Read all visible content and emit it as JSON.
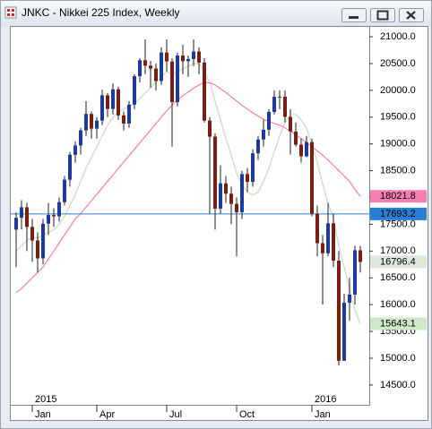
{
  "chart_data": {
    "type": "candlestick",
    "title": "JNKC - Nikkei 225 Index, Weekly",
    "categories": [
      null,
      null,
      null,
      "Jan",
      null,
      null,
      null,
      null,
      null,
      null,
      null,
      null,
      null,
      null,
      null,
      "Apr",
      null,
      null,
      null,
      null,
      null,
      null,
      null,
      null,
      null,
      null,
      null,
      null,
      "Jul",
      null,
      null,
      null,
      null,
      null,
      null,
      null,
      null,
      null,
      null,
      null,
      null,
      "Oct",
      null,
      null,
      null,
      null,
      null,
      null,
      null,
      null,
      null,
      null,
      null,
      null,
      null,
      "Jan",
      null,
      null,
      null,
      null,
      null,
      null,
      null,
      null,
      null
    ],
    "category_years": [
      null,
      null,
      null,
      "2015",
      null,
      null,
      null,
      null,
      null,
      null,
      null,
      null,
      null,
      null,
      null,
      null,
      null,
      null,
      null,
      null,
      null,
      null,
      null,
      null,
      null,
      null,
      null,
      null,
      null,
      null,
      null,
      null,
      null,
      null,
      null,
      null,
      null,
      null,
      null,
      null,
      null,
      null,
      null,
      null,
      null,
      null,
      null,
      null,
      null,
      null,
      null,
      null,
      null,
      null,
      null,
      "2016",
      null,
      null,
      null,
      null,
      null,
      null,
      null,
      null,
      null
    ],
    "open": [
      17400,
      17621,
      17818,
      17451,
      17197,
      16864,
      17511,
      17674,
      17648,
      17913,
      18332,
      18798,
      18971,
      19254,
      19560,
      19286,
      19435,
      19908,
      19653,
      20020,
      19532,
      19380,
      19733,
      20264,
      20563,
      20461,
      20407,
      20174,
      20706,
      20539,
      19780,
      20650,
      20544,
      20585,
      20725,
      20519,
      19436,
      19136,
      17792,
      18264,
      18070,
      17880,
      17725,
      18438,
      18291,
      18825,
      19083,
      19265,
      19597,
      19880,
      19883,
      19504,
      19230,
      18986,
      18769,
      19034,
      17698,
      17147,
      16958,
      17518,
      16820,
      14953,
      16036,
      16188,
      17015
    ],
    "high": [
      17720,
      17950,
      17900,
      17600,
      17350,
      17600,
      17900,
      17800,
      18000,
      18400,
      18850,
      19050,
      19300,
      19800,
      19600,
      19500,
      20010,
      19950,
      20130,
      20070,
      19600,
      19800,
      20300,
      20600,
      20950,
      20550,
      20500,
      20800,
      20950,
      20600,
      20700,
      20850,
      20650,
      20950,
      20800,
      20600,
      19500,
      19200,
      18600,
      18400,
      18200,
      18000,
      18500,
      18550,
      18900,
      19150,
      19450,
      19650,
      20000,
      20000,
      20000,
      19650,
      19400,
      19100,
      19150,
      19100,
      17850,
      17300,
      17900,
      17700,
      17000,
      16200,
      16500,
      17100,
      17100
    ],
    "low": [
      16700,
      17400,
      17000,
      16800,
      16600,
      16750,
      17300,
      17450,
      17550,
      17850,
      18200,
      18650,
      18800,
      19150,
      19100,
      19100,
      19350,
      19500,
      19550,
      19450,
      19250,
      19300,
      19650,
      20150,
      20300,
      20050,
      20000,
      20100,
      20350,
      18950,
      19700,
      20300,
      20250,
      20450,
      20300,
      19400,
      17700,
      17400,
      17700,
      17900,
      17500,
      16900,
      17600,
      18100,
      18200,
      18700,
      18950,
      19150,
      19550,
      19650,
      19400,
      18800,
      18950,
      18650,
      18750,
      17650,
      16900,
      16000,
      16900,
      16700,
      14865,
      14950,
      15700,
      16000,
      16600
    ],
    "close": [
      17621,
      17818,
      17451,
      17197,
      16864,
      17511,
      17674,
      17648,
      17913,
      18332,
      18798,
      18971,
      19254,
      19560,
      19286,
      19435,
      19908,
      19653,
      20020,
      19532,
      19380,
      19733,
      20264,
      20563,
      20461,
      20407,
      20174,
      20706,
      20539,
      19780,
      20650,
      20544,
      20585,
      20725,
      20519,
      19436,
      19136,
      17792,
      18264,
      18070,
      17880,
      17725,
      18438,
      18291,
      18825,
      19083,
      19265,
      19597,
      19880,
      19883,
      19504,
      19230,
      18986,
      18769,
      19034,
      17698,
      17147,
      16958,
      17518,
      16820,
      14953,
      16036,
      16188,
      17015,
      16796.4
    ],
    "up_color": "#1c3b9c",
    "down_color": "#7a1e14",
    "last_label_color": "#dfe6dc",
    "series": [
      {
        "color": "#c5dcc0",
        "label_color": "#cfe8c8",
        "values": [
          17000,
          17100,
          17200,
          17250,
          17250,
          17300,
          17350,
          17400,
          17500,
          17650,
          17850,
          18050,
          18300,
          18550,
          18750,
          18950,
          19150,
          19350,
          19500,
          19600,
          19650,
          19700,
          19750,
          19850,
          19950,
          20050,
          20150,
          20250,
          20350,
          20300,
          20350,
          20400,
          20450,
          20500,
          20500,
          20350,
          20150,
          19800,
          19450,
          19100,
          18800,
          18450,
          18250,
          18100,
          18050,
          18100,
          18300,
          18550,
          18850,
          19150,
          19400,
          19550,
          19550,
          19450,
          19300,
          19000,
          18650,
          18250,
          17900,
          17600,
          17100,
          16700,
          16300,
          15900,
          15643.1
        ]
      },
      {
        "color": "#f080a8",
        "label_color": "#f77fb0",
        "values": [
          16230,
          16300,
          16400,
          16500,
          16600,
          16700,
          16850,
          17000,
          17150,
          17300,
          17450,
          17600,
          17700,
          17820,
          17940,
          18060,
          18180,
          18300,
          18420,
          18540,
          18660,
          18780,
          18900,
          19020,
          19140,
          19260,
          19380,
          19500,
          19620,
          19720,
          19820,
          19900,
          19970,
          20040,
          20100,
          20150,
          20140,
          20100,
          20030,
          19960,
          19880,
          19800,
          19720,
          19650,
          19580,
          19520,
          19460,
          19420,
          19380,
          19350,
          19300,
          19240,
          19170,
          19100,
          19030,
          18950,
          18870,
          18790,
          18700,
          18600,
          18500,
          18400,
          18300,
          18150,
          18021.8
        ]
      }
    ],
    "hline": {
      "value": 17693.2,
      "color": "#2a7fd4"
    },
    "ylim": [
      14130,
      21185
    ],
    "yticks": [
      {
        "value": 14500,
        "label": "14500.0"
      },
      {
        "value": 15000,
        "label": "15000.0"
      },
      {
        "value": 15500,
        "label": "15500.0"
      },
      {
        "value": 16000,
        "label": "16000.0"
      },
      {
        "value": 16500,
        "label": "16500.0"
      },
      {
        "value": 17000,
        "label": "17000.0"
      },
      {
        "value": 17500,
        "label": "17500.0"
      },
      {
        "value": 18000,
        "label": "18000.0"
      },
      {
        "value": 18500,
        "label": "18500.0"
      },
      {
        "value": 19000,
        "label": "19000.0"
      },
      {
        "value": 19500,
        "label": "19500.0"
      },
      {
        "value": 20000,
        "label": "20000.0"
      },
      {
        "value": 20500,
        "label": "20500.0"
      },
      {
        "value": 21000,
        "label": "21000.0"
      }
    ]
  }
}
